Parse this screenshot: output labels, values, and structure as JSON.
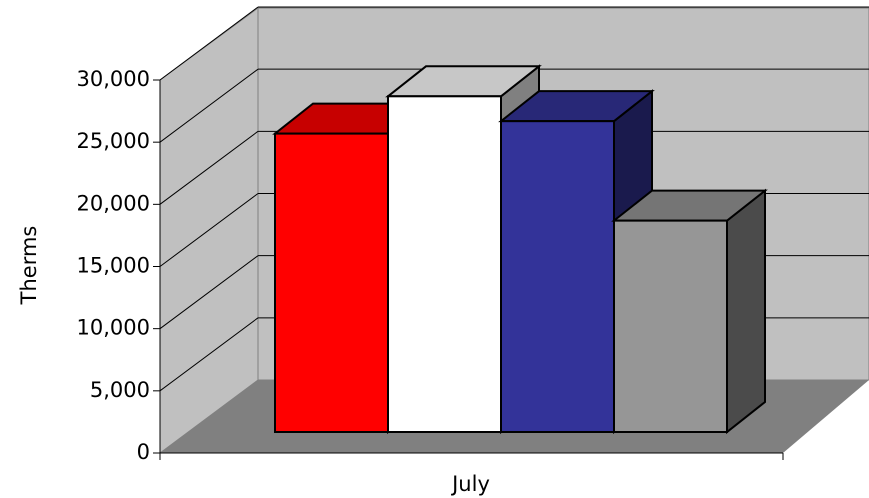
{
  "chart_data": {
    "type": "bar3d",
    "ylabel": "Therms",
    "categories": [
      "July"
    ],
    "series": [
      {
        "color": "#ff0000",
        "values": [
          24000
        ]
      },
      {
        "color": "#ffffff",
        "values": [
          27000
        ]
      },
      {
        "color": "#333399",
        "values": [
          25000
        ]
      },
      {
        "color": "#969696",
        "values": [
          17000
        ]
      }
    ],
    "ylim": [
      0,
      30000
    ],
    "yticks": [
      0,
      {
        "value": 5000,
        "label": "5,000"
      },
      {
        "value": 10000,
        "label": "10,000"
      },
      {
        "value": 15000,
        "label": "15,000"
      },
      {
        "value": 20000,
        "label": "20,000"
      },
      {
        "value": 25000,
        "label": "25,000"
      },
      {
        "value": 30000,
        "label": "30,000"
      }
    ],
    "grid": true
  }
}
